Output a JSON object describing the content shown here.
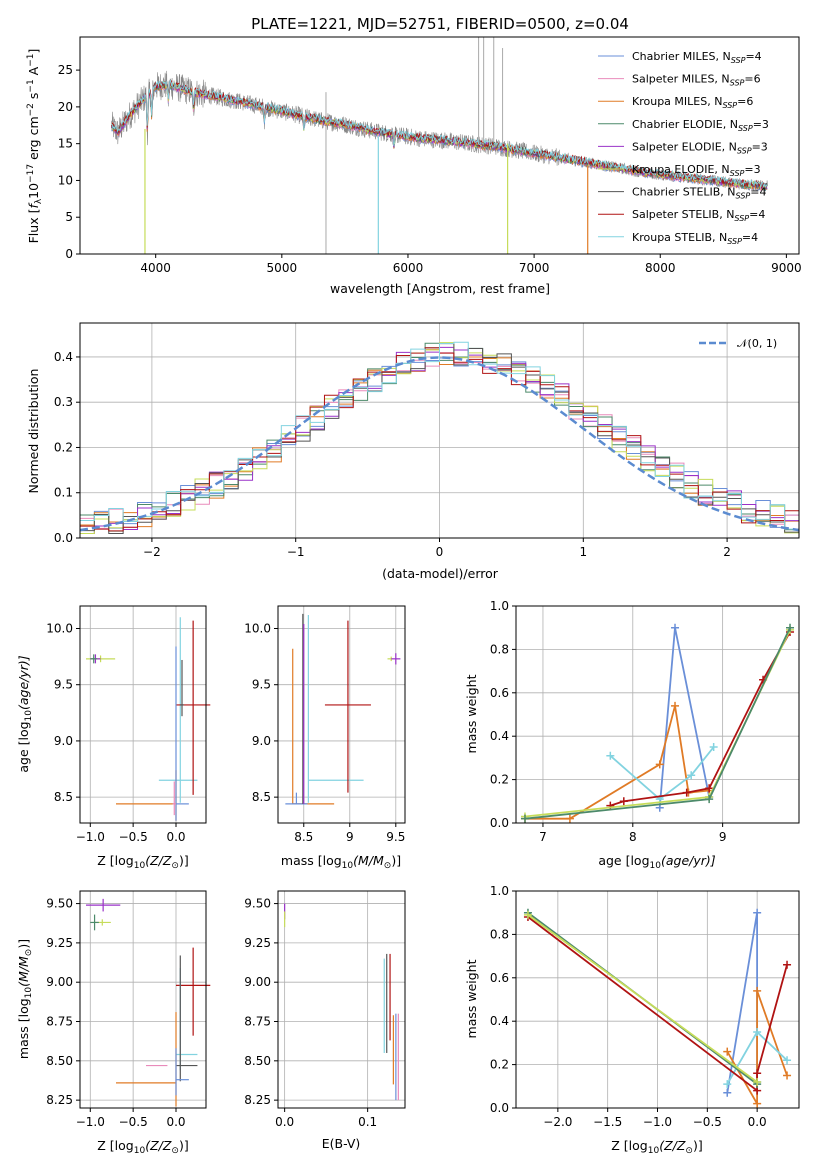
{
  "palette": {
    "chabrier_miles": "#6a8fd8",
    "salpeter_miles": "#e98bbb",
    "kroupa_miles": "#e07b26",
    "chabrier_elodie": "#4c8a6a",
    "salpeter_elodie": "#9a32c8",
    "kroupa_elodie": "#c6dc5a",
    "chabrier_stelib": "#555555",
    "salpeter_stelib": "#b01313",
    "kroupa_stelib": "#82d3e0",
    "normal_curve": "#5b8bd0",
    "grid": "#b0b0b0"
  },
  "chart_data": [
    {
      "id": "spectrum",
      "type": "line",
      "title": "PLATE=1221, MJD=52751, FIBERID=0500, z=0.04",
      "xlabel": "wavelength [Angstrom, rest frame]",
      "ylabel_pre": "Flux [",
      "ylabel_sym": "f",
      "ylabel_sub": "λ",
      "ylabel_mid": "10",
      "ylabel_sup1": "−17",
      "ylabel_post": " erg cm",
      "ylabel_sup2": "−2",
      "ylabel_s": " s",
      "ylabel_sup3": "−1",
      "ylabel_a": " A",
      "ylabel_sup4": "−1",
      "ylabel_end": "]",
      "xlim": [
        3400,
        9100
      ],
      "ylim": [
        0,
        29.5
      ],
      "xticks": [
        4000,
        5000,
        6000,
        7000,
        8000,
        9000
      ],
      "yticks": [
        0,
        5,
        10,
        15,
        20,
        25
      ],
      "grid": false,
      "legend_placement": "top-right",
      "continuum": {
        "x": [
          3650,
          3700,
          3800,
          3900,
          4000,
          4100,
          4200,
          4300,
          4500,
          4700,
          4900,
          5100,
          5300,
          5500,
          5700,
          5900,
          6100,
          6300,
          6500,
          6700,
          6900,
          7100,
          7300,
          7500,
          7700,
          7900,
          8100,
          8300,
          8500,
          8700,
          8850
        ],
        "y": [
          17.5,
          16.5,
          19.0,
          21.0,
          22.8,
          23.0,
          22.5,
          22.0,
          21.3,
          20.6,
          19.8,
          19.0,
          18.2,
          17.6,
          16.8,
          16.2,
          15.7,
          15.4,
          15.0,
          14.6,
          14.0,
          13.4,
          12.8,
          12.2,
          11.6,
          11.0,
          10.6,
          10.2,
          9.8,
          9.4,
          9.2
        ]
      },
      "series": [
        {
          "name": "Chabrier MILES",
          "label": "Chabrier MILES, N",
          "sub": "SSP",
          "n": "=4",
          "color_key": "chabrier_miles"
        },
        {
          "name": "Salpeter MILES",
          "label": "Salpeter MILES, N",
          "sub": "SSP",
          "n": "=6",
          "color_key": "salpeter_miles"
        },
        {
          "name": "Kroupa MILES",
          "label": "Kroupa MILES, N",
          "sub": "SSP",
          "n": "=6",
          "color_key": "kroupa_miles"
        },
        {
          "name": "Chabrier ELODIE",
          "label": "Chabrier ELODIE, N",
          "sub": "SSP",
          "n": "=3",
          "color_key": "chabrier_elodie"
        },
        {
          "name": "Salpeter ELODIE",
          "label": "Salpeter ELODIE, N",
          "sub": "SSP",
          "n": "=3",
          "color_key": "salpeter_elodie"
        },
        {
          "name": "Kroupa ELODIE",
          "label": "Kroupa ELODIE, N",
          "sub": "SSP",
          "n": "=3",
          "color_key": "kroupa_elodie"
        },
        {
          "name": "Chabrier STELIB",
          "label": "Chabrier STELIB, N",
          "sub": "SSP",
          "n": "=4",
          "color_key": "chabrier_stelib"
        },
        {
          "name": "Salpeter STELIB",
          "label": "Salpeter STELIB, N",
          "sub": "SSP",
          "n": "=4",
          "color_key": "salpeter_stelib"
        },
        {
          "name": "Kroupa STELIB",
          "label": "Kroupa STELIB, N",
          "sub": "SSP",
          "n": "=4",
          "color_key": "kroupa_stelib"
        }
      ]
    },
    {
      "id": "residuals",
      "type": "histogram",
      "xlabel": "(data-model)/error",
      "ylabel": "Normed distribution",
      "xlim": [
        -2.5,
        2.5
      ],
      "ylim": [
        0,
        0.475
      ],
      "xticks": [
        -2,
        -1,
        0,
        1,
        2
      ],
      "yticks": [
        0.0,
        0.1,
        0.2,
        0.3,
        0.4
      ],
      "grid": true,
      "legend_placement": "top-right",
      "legend_label": "𝒩(0, 1)",
      "bin_width": 0.1,
      "bin_start": -2.5
    },
    {
      "id": "age_vs_z",
      "type": "errorbar",
      "xlabel_pre": "Z [log",
      "xlabel_sub": "10",
      "xlabel_post": "(Z/Z",
      "xlabel_sub2": "⊙",
      "xlabel_end": ")]",
      "ylabel_pre": "age  [log",
      "ylabel_sub": "10",
      "ylabel_post": "(age/yr)]",
      "xlim": [
        -1.12,
        0.35
      ],
      "ylim": [
        8.27,
        10.2
      ],
      "xticks": [
        -1.0,
        -0.5,
        0.0
      ],
      "xticklabels": [
        "−1.0",
        "−0.5",
        "0.0"
      ],
      "yticks": [
        8.5,
        9.0,
        9.5,
        10.0
      ],
      "grid": true,
      "points": [
        {
          "series": "kroupa_elodie",
          "x": -0.88,
          "y": 9.73,
          "xerr": [
            0.17,
            0.17
          ],
          "yerr": [
            0.03,
            0.03
          ]
        },
        {
          "series": "salpeter_elodie",
          "x": -0.94,
          "y": 9.73,
          "xerr": [
            0.06,
            0.06
          ],
          "yerr": [
            0.04,
            0.04
          ]
        },
        {
          "series": "chabrier_elodie",
          "x": -0.96,
          "y": 9.73,
          "xerr": [
            0.04,
            0.04
          ],
          "yerr": [
            0.04,
            0.04
          ]
        },
        {
          "series": "kroupa_stelib",
          "x": 0.05,
          "y": 8.65,
          "xerr": [
            0.25,
            0.2
          ],
          "yerr": [
            0.2,
            1.45
          ]
        },
        {
          "series": "salpeter_stelib",
          "x": 0.2,
          "y": 9.32,
          "xerr": [
            0.2,
            0.2
          ],
          "yerr": [
            0.8,
            0.75
          ]
        },
        {
          "series": "chabrier_stelib",
          "x": 0.07,
          "y": 9.32,
          "xerr": [
            0.02,
            0.02
          ],
          "yerr": [
            0.1,
            0.4
          ]
        },
        {
          "series": "kroupa_miles",
          "x": 0.0,
          "y": 8.44,
          "xerr": [
            0.7,
            0.0
          ],
          "yerr": [
            0.15,
            0.3
          ]
        },
        {
          "series": "chabrier_miles",
          "x": 0.0,
          "y": 8.44,
          "xerr": [
            0.0,
            0.15
          ],
          "yerr": [
            0.15,
            1.4
          ]
        },
        {
          "series": "salpeter_miles",
          "x": -0.02,
          "y": 8.44,
          "xerr": [
            0.02,
            0.02
          ],
          "yerr": [
            0.1,
            0.2
          ]
        }
      ]
    },
    {
      "id": "age_vs_mass",
      "type": "errorbar",
      "xlabel_pre": "mass [log",
      "xlabel_sub": "10",
      "xlabel_post": "(M/M",
      "xlabel_sub2": "⊙",
      "xlabel_end": ")]",
      "xlim": [
        8.22,
        9.6
      ],
      "ylim": [
        8.27,
        10.2
      ],
      "xticks": [
        8.5,
        9.0,
        9.5
      ],
      "yticks": [
        8.5,
        9.0,
        9.5,
        10.0
      ],
      "grid": true,
      "points": [
        {
          "series": "kroupa_miles",
          "x": 8.38,
          "y": 8.44,
          "xerr": [
            0.0,
            0.45
          ],
          "yerr": [
            0.0,
            1.38
          ]
        },
        {
          "series": "chabrier_miles",
          "x": 8.42,
          "y": 8.44,
          "xerr": [
            0.12,
            0.12
          ],
          "yerr": [
            0.0,
            0.1
          ]
        },
        {
          "series": "chabrier_stelib",
          "x": 8.49,
          "y": 8.44,
          "xerr": [
            0.0,
            0.0
          ],
          "yerr": [
            0.0,
            1.69
          ]
        },
        {
          "series": "salpeter_elodie",
          "x": 8.5,
          "y": 8.44,
          "xerr": [
            0.0,
            0.0
          ],
          "yerr": [
            0.0,
            1.6
          ]
        },
        {
          "series": "kroupa_stelib",
          "x": 8.55,
          "y": 8.65,
          "xerr": [
            0.0,
            0.6
          ],
          "yerr": [
            0.2,
            1.47
          ]
        },
        {
          "series": "salpeter_stelib",
          "x": 8.98,
          "y": 9.32,
          "xerr": [
            0.25,
            0.25
          ],
          "yerr": [
            0.78,
            0.75
          ]
        },
        {
          "series": "kroupa_elodie",
          "x": 9.45,
          "y": 9.73,
          "xerr": [
            0.04,
            0.0
          ],
          "yerr": [
            0.02,
            0.02
          ]
        },
        {
          "series": "salpeter_elodie",
          "x": 9.5,
          "y": 9.73,
          "xerr": [
            0.05,
            0.05
          ],
          "yerr": [
            0.05,
            0.05
          ]
        }
      ]
    },
    {
      "id": "weight_vs_age",
      "type": "line",
      "xlabel_pre": "age  [log",
      "xlabel_sub": "10",
      "xlabel_post": "(age/yr)]",
      "ylabel": "mass weight",
      "xlim": [
        6.7,
        9.85
      ],
      "ylim": [
        0,
        1
      ],
      "xticks": [
        7,
        8,
        9
      ],
      "yticks": [
        0.0,
        0.2,
        0.4,
        0.6,
        0.8,
        1.0
      ],
      "grid": true,
      "series": [
        {
          "key": "chabrier_miles",
          "x": [
            8.3,
            8.47,
            8.85
          ],
          "y": [
            0.07,
            0.9,
            0.12
          ]
        },
        {
          "key": "kroupa_miles",
          "x": [
            6.8,
            7.3,
            8.3,
            8.47,
            8.62,
            8.85
          ],
          "y": [
            0.02,
            0.02,
            0.27,
            0.54,
            0.14,
            0.15
          ]
        },
        {
          "key": "kroupa_stelib",
          "x": [
            7.75,
            8.3,
            8.65,
            8.9
          ],
          "y": [
            0.31,
            0.11,
            0.22,
            0.35
          ]
        },
        {
          "key": "salpeter_stelib",
          "x": [
            7.75,
            7.9,
            8.6,
            8.85,
            9.45,
            9.75
          ],
          "y": [
            0.08,
            0.1,
            0.14,
            0.16,
            0.66,
            0.88
          ]
        },
        {
          "key": "kroupa_elodie",
          "x": [
            6.8,
            8.85,
            9.75
          ],
          "y": [
            0.03,
            0.12,
            0.89
          ]
        },
        {
          "key": "chabrier_elodie",
          "x": [
            6.8,
            8.85,
            9.75
          ],
          "y": [
            0.02,
            0.11,
            0.9
          ]
        }
      ]
    },
    {
      "id": "mass_vs_z",
      "type": "errorbar",
      "xlabel_pre": "Z [log",
      "xlabel_sub": "10",
      "xlabel_post": "(Z/Z",
      "xlabel_sub2": "⊙",
      "xlabel_end": ")]",
      "ylabel_pre": "mass [log",
      "ylabel_sub": "10",
      "ylabel_post": "(M/M",
      "ylabel_sub2": "⊙",
      "ylabel_end": ")]",
      "xlim": [
        -1.12,
        0.35
      ],
      "ylim": [
        8.2,
        9.58
      ],
      "xticks": [
        -1.0,
        -0.5,
        0.0
      ],
      "xticklabels": [
        "−1.0",
        "−0.5",
        "0.0"
      ],
      "yticks": [
        8.25,
        8.5,
        8.75,
        9.0,
        9.25,
        9.5
      ],
      "grid": true,
      "points": [
        {
          "series": "salpeter_elodie",
          "x": -0.85,
          "y": 9.49,
          "xerr": [
            0.2,
            0.2
          ],
          "yerr": [
            0.04,
            0.04
          ]
        },
        {
          "series": "kroupa_elodie",
          "x": -0.86,
          "y": 9.38,
          "xerr": [
            0.1,
            0.1
          ],
          "yerr": [
            0.02,
            0.02
          ]
        },
        {
          "series": "chabrier_elodie",
          "x": -0.95,
          "y": 9.38,
          "xerr": [
            0.05,
            0.05
          ],
          "yerr": [
            0.05,
            0.05
          ]
        },
        {
          "series": "salpeter_stelib",
          "x": 0.2,
          "y": 8.98,
          "xerr": [
            0.2,
            0.2
          ],
          "yerr": [
            0.32,
            0.24
          ]
        },
        {
          "series": "kroupa_stelib",
          "x": 0.05,
          "y": 8.54,
          "xerr": [
            0.05,
            0.2
          ],
          "yerr": [
            0.1,
            0.55
          ]
        },
        {
          "series": "chabrier_stelib",
          "x": 0.05,
          "y": 8.47,
          "xerr": [
            0.05,
            0.2
          ],
          "yerr": [
            0.1,
            0.7
          ]
        },
        {
          "series": "kroupa_miles",
          "x": 0.0,
          "y": 8.36,
          "xerr": [
            0.7,
            0.0
          ],
          "yerr": [
            0.15,
            0.45
          ]
        },
        {
          "series": "chabrier_miles",
          "x": 0.0,
          "y": 8.38,
          "xerr": [
            0.0,
            0.15
          ],
          "yerr": [
            0.1,
            0.2
          ]
        },
        {
          "series": "salpeter_miles",
          "x": -0.1,
          "y": 8.47,
          "xerr": [
            0.25,
            0.0
          ],
          "yerr": [
            0.0,
            0.0
          ]
        }
      ]
    },
    {
      "id": "mass_vs_ebv",
      "type": "errorbar",
      "xlabel": "E(B-V)",
      "xlim": [
        -0.008,
        0.145
      ],
      "ylim": [
        8.2,
        9.58
      ],
      "xticks": [
        0.0,
        0.1
      ],
      "yticks": [
        8.25,
        8.5,
        8.75,
        9.0,
        9.25,
        9.5
      ],
      "grid": true,
      "points": [
        {
          "series": "salpeter_elodie",
          "x": 0.0,
          "y": 9.45,
          "xerr": [
            0,
            0
          ],
          "yerr": [
            0.05,
            0.05
          ]
        },
        {
          "series": "kroupa_elodie",
          "x": 0.0,
          "y": 9.4,
          "xerr": [
            0,
            0
          ],
          "yerr": [
            0.05,
            0.05
          ]
        },
        {
          "series": "kroupa_stelib",
          "x": 0.12,
          "y": 8.85,
          "xerr": [
            0,
            0
          ],
          "yerr": [
            0.3,
            0.3
          ]
        },
        {
          "series": "chabrier_stelib",
          "x": 0.123,
          "y": 8.9,
          "xerr": [
            0,
            0
          ],
          "yerr": [
            0.35,
            0.28
          ]
        },
        {
          "series": "salpeter_stelib",
          "x": 0.127,
          "y": 8.88,
          "xerr": [
            0,
            0
          ],
          "yerr": [
            0.25,
            0.3
          ]
        },
        {
          "series": "kroupa_miles",
          "x": 0.131,
          "y": 8.57,
          "xerr": [
            0,
            0
          ],
          "yerr": [
            0.22,
            0.22
          ]
        },
        {
          "series": "chabrier_miles",
          "x": 0.134,
          "y": 8.52,
          "xerr": [
            0,
            0
          ],
          "yerr": [
            0.27,
            0.28
          ]
        },
        {
          "series": "salpeter_miles",
          "x": 0.137,
          "y": 8.5,
          "xerr": [
            0,
            0
          ],
          "yerr": [
            0.25,
            0.3
          ]
        }
      ]
    },
    {
      "id": "weight_vs_z",
      "type": "line",
      "xlabel_pre": "Z [log",
      "xlabel_sub": "10",
      "xlabel_post": "(Z/Z",
      "xlabel_sub2": "⊙",
      "xlabel_end": ")]",
      "ylabel": "mass weight",
      "xlim": [
        -2.42,
        0.42
      ],
      "ylim": [
        0,
        1
      ],
      "xticks": [
        -2.0,
        -1.5,
        -1.0,
        -0.5,
        0.0
      ],
      "xticklabels": [
        "−2.0",
        "−1.5",
        "−1.0",
        "−0.5",
        "0.0"
      ],
      "yticks": [
        0.0,
        0.2,
        0.4,
        0.6,
        0.8,
        1.0
      ],
      "grid": true,
      "series": [
        {
          "key": "chabrier_miles",
          "x": [
            -0.3,
            0.0,
            0.0
          ],
          "y": [
            0.07,
            0.9,
            0.12
          ]
        },
        {
          "key": "kroupa_miles",
          "x": [
            -0.3,
            0.0,
            0.0,
            0.3
          ],
          "y": [
            0.26,
            0.02,
            0.54,
            0.15
          ]
        },
        {
          "key": "kroupa_stelib",
          "x": [
            -0.3,
            0.0,
            0.3
          ],
          "y": [
            0.11,
            0.35,
            0.22
          ]
        },
        {
          "key": "salpeter_stelib",
          "x": [
            -2.3,
            0.0,
            0.0,
            0.3
          ],
          "y": [
            0.88,
            0.08,
            0.16,
            0.66
          ]
        },
        {
          "key": "chabrier_elodie",
          "x": [
            -2.3,
            0.0
          ],
          "y": [
            0.9,
            0.11
          ]
        },
        {
          "key": "kroupa_elodie",
          "x": [
            -2.3,
            0.0
          ],
          "y": [
            0.89,
            0.12
          ]
        }
      ]
    }
  ]
}
